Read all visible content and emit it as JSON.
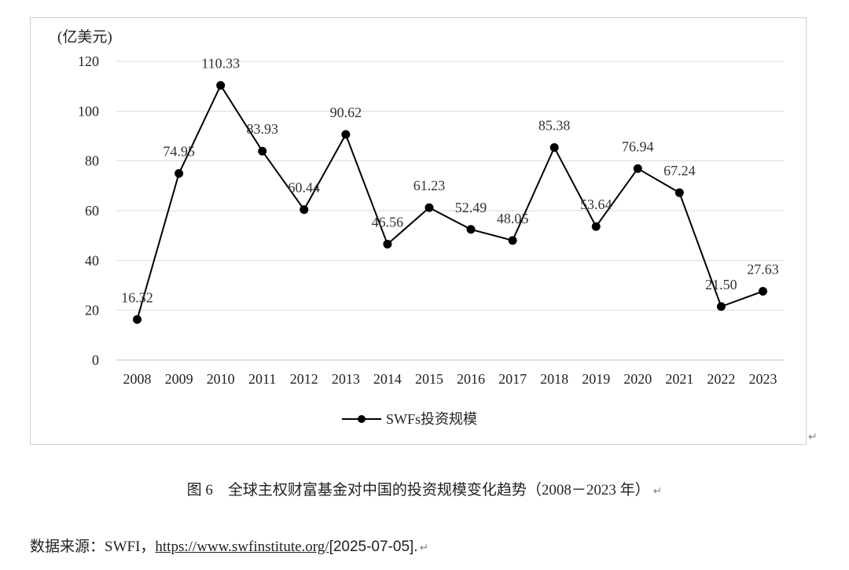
{
  "chart_data": {
    "type": "line",
    "unit_label": "(亿美元)",
    "x": [
      "2008",
      "2009",
      "2010",
      "2011",
      "2012",
      "2013",
      "2014",
      "2015",
      "2016",
      "2017",
      "2018",
      "2019",
      "2020",
      "2021",
      "2022",
      "2023"
    ],
    "series": [
      {
        "name": "SWFs投资规模",
        "values": [
          16.32,
          74.95,
          110.33,
          83.93,
          60.44,
          90.62,
          46.56,
          61.23,
          52.49,
          48.05,
          85.38,
          53.64,
          76.94,
          67.24,
          21.5,
          27.63
        ],
        "labels": [
          "16.32",
          "74.95",
          "110.33",
          "83.93",
          "60.44",
          "90.62",
          "46.56",
          "61.23",
          "52.49",
          "48.05",
          "85.38",
          "53.64",
          "76.94",
          "67.24",
          "21.50",
          "27.63"
        ],
        "color": "#000000"
      }
    ],
    "ylim": [
      0,
      120
    ],
    "yticks": [
      0,
      20,
      40,
      60,
      80,
      100,
      120
    ],
    "grid": true,
    "legend_position": "bottom",
    "gridline_color": "#d9d9d9"
  },
  "caption": {
    "figure_no": "图 6",
    "title": "全球主权财富基金对中国的投资规模变化趋势（2008－2023 年）"
  },
  "source": {
    "prefix": "数据来源：SWFI，",
    "url": "https://www.swfinstitute.org/",
    "date": "[2025-07-05]."
  },
  "marks": {
    "return_symbol": "↵"
  }
}
